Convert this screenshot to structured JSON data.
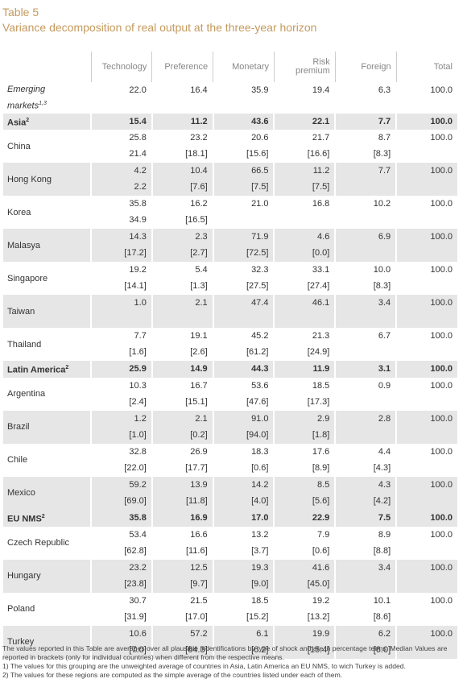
{
  "header": {
    "label": "Table 5",
    "title": "Variance decomposition of real output at the three-year horizon"
  },
  "table": {
    "columns": [
      "Technology",
      "Preference",
      "Monetary",
      "Risk premium",
      "Foreign",
      "Total"
    ],
    "rows": [
      {
        "label": "Emerging markets",
        "sup": "1,3",
        "values": [
          "22.0",
          "16.4",
          "35.9",
          "19.4",
          "6.3",
          "100.0"
        ]
      },
      {
        "label": "Asia",
        "sup": "2",
        "bold": true,
        "values": [
          "15.4",
          "11.2",
          "43.6",
          "22.1",
          "7.7",
          "100.0"
        ]
      },
      {
        "label": "China",
        "values": [
          "25.8",
          "23.2",
          "20.6",
          "21.7",
          "8.7",
          "100.0"
        ],
        "brackets": [
          "21.4",
          "[18.1]",
          "[15.6]",
          "[16.6]",
          "[8.3]",
          null
        ]
      },
      {
        "label": "Hong Kong",
        "values": [
          "4.2",
          "10.4",
          "66.5",
          "11.2",
          "7.7",
          "100.0"
        ],
        "brackets": [
          "2.2",
          "[7.6]",
          "[7.5]",
          "[7.5]",
          null,
          null
        ]
      },
      {
        "label": "Korea",
        "values": [
          "35.8",
          "16.2",
          "21.0",
          "16.8",
          "10.2",
          "100.0"
        ],
        "brackets": [
          "34.9",
          "[16.5]",
          null,
          null,
          null,
          null
        ]
      },
      {
        "label": "Malasya",
        "values": [
          "14.3",
          "2.3",
          "71.9",
          "4.6",
          "6.9",
          "100.0"
        ],
        "brackets": [
          "[17.2]",
          "[2.7]",
          "[72.5]",
          "[0.0]",
          null,
          null
        ]
      },
      {
        "label": "Singapore",
        "values": [
          "19.2",
          "5.4",
          "32.3",
          "33.1",
          "10.0",
          "100.0"
        ],
        "brackets": [
          "[14.1]",
          "[1.3]",
          "[27.5]",
          "[27.4]",
          "[8.3]",
          null
        ]
      },
      {
        "label": "Taiwan",
        "values": [
          "1.0",
          "2.1",
          "47.4",
          "46.1",
          "3.4",
          "100.0"
        ],
        "brackets": [
          null,
          null,
          null,
          null,
          null,
          null
        ]
      },
      {
        "label": "Thailand",
        "values": [
          "7.7",
          "19.1",
          "45.2",
          "21.3",
          "6.7",
          "100.0"
        ],
        "brackets": [
          "[1.6]",
          "[2.6]",
          "[61.2]",
          "[24.9]",
          null,
          null
        ]
      },
      {
        "label": "Latin America",
        "sup": "2",
        "bold": true,
        "values": [
          "25.9",
          "14.9",
          "44.3",
          "11.9",
          "3.1",
          "100.0"
        ]
      },
      {
        "label": "Argentina",
        "values": [
          "10.3",
          "16.7",
          "53.6",
          "18.5",
          "0.9",
          "100.0"
        ],
        "brackets": [
          "[2.4]",
          "[15.1]",
          "[47.6]",
          "[17.3]",
          null,
          null
        ]
      },
      {
        "label": "Brazil",
        "values": [
          "1.2",
          "2.1",
          "91.0",
          "2.9",
          "2.8",
          "100.0"
        ],
        "brackets": [
          "[1.0]",
          "[0.2]",
          "[94.0]",
          "[1.8]",
          null,
          null
        ]
      },
      {
        "label": "Chile",
        "values": [
          "32.8",
          "26.9",
          "18.3",
          "17.6",
          "4.4",
          "100.0"
        ],
        "brackets": [
          "[22.0]",
          "[17.7]",
          "[0.6]",
          "[8.9]",
          "[4.3]",
          null
        ]
      },
      {
        "label": "Mexico",
        "values": [
          "59.2",
          "13.9",
          "14.2",
          "8.5",
          "4.3",
          "100.0"
        ],
        "brackets": [
          "[69.0]",
          "[11.8]",
          "[4.0]",
          "[5.6]",
          "[4.2]",
          null
        ]
      },
      {
        "label": "EU NMS",
        "sup": "2",
        "bold": true,
        "values": [
          "35.8",
          "16.9",
          "17.0",
          "22.9",
          "7.5",
          "100.0"
        ]
      },
      {
        "label": "Czech Republic",
        "values": [
          "53.4",
          "16.6",
          "13.2",
          "7.9",
          "8.9",
          "100.0"
        ],
        "brackets": [
          "[62.8]",
          "[11.6]",
          "[3.7]",
          "[0.6]",
          "[8.8]",
          null
        ]
      },
      {
        "label": "Hungary",
        "values": [
          "23.2",
          "12.5",
          "19.3",
          "41.6",
          "3.4",
          "100.0"
        ],
        "brackets": [
          "[23.8]",
          "[9.7]",
          "[9.0]",
          "[45.0]",
          null,
          null
        ]
      },
      {
        "label": "Poland",
        "values": [
          "30.7",
          "21.5",
          "18.5",
          "19.2",
          "10.1",
          "100.0"
        ],
        "brackets": [
          "[31.9]",
          "[17.0]",
          "[15.2]",
          "[13.2]",
          "[8.6]",
          null
        ]
      },
      {
        "label": "Turkey",
        "values": [
          "10.6",
          "57.2",
          "6.1",
          "19.9",
          "6.2",
          "100.0"
        ],
        "brackets": [
          "[7.0]",
          "[64.3]",
          "[6.2]",
          "[15.4]",
          "[6.0]",
          null
        ]
      }
    ]
  },
  "notes": [
    "The values reported in this Table are averages over all plausible indentifications by type of shock and are in percentage terms. Median Values are reported in brackets (only for individual countries) when different from the respective means.",
    "1) The values for this grouping are the unweighted average of countries in Asia, Latin America an EU NMS, to wich Turkey is added.",
    "2) The values for these regions are computed as the simple average of the countries listed under each of them."
  ]
}
